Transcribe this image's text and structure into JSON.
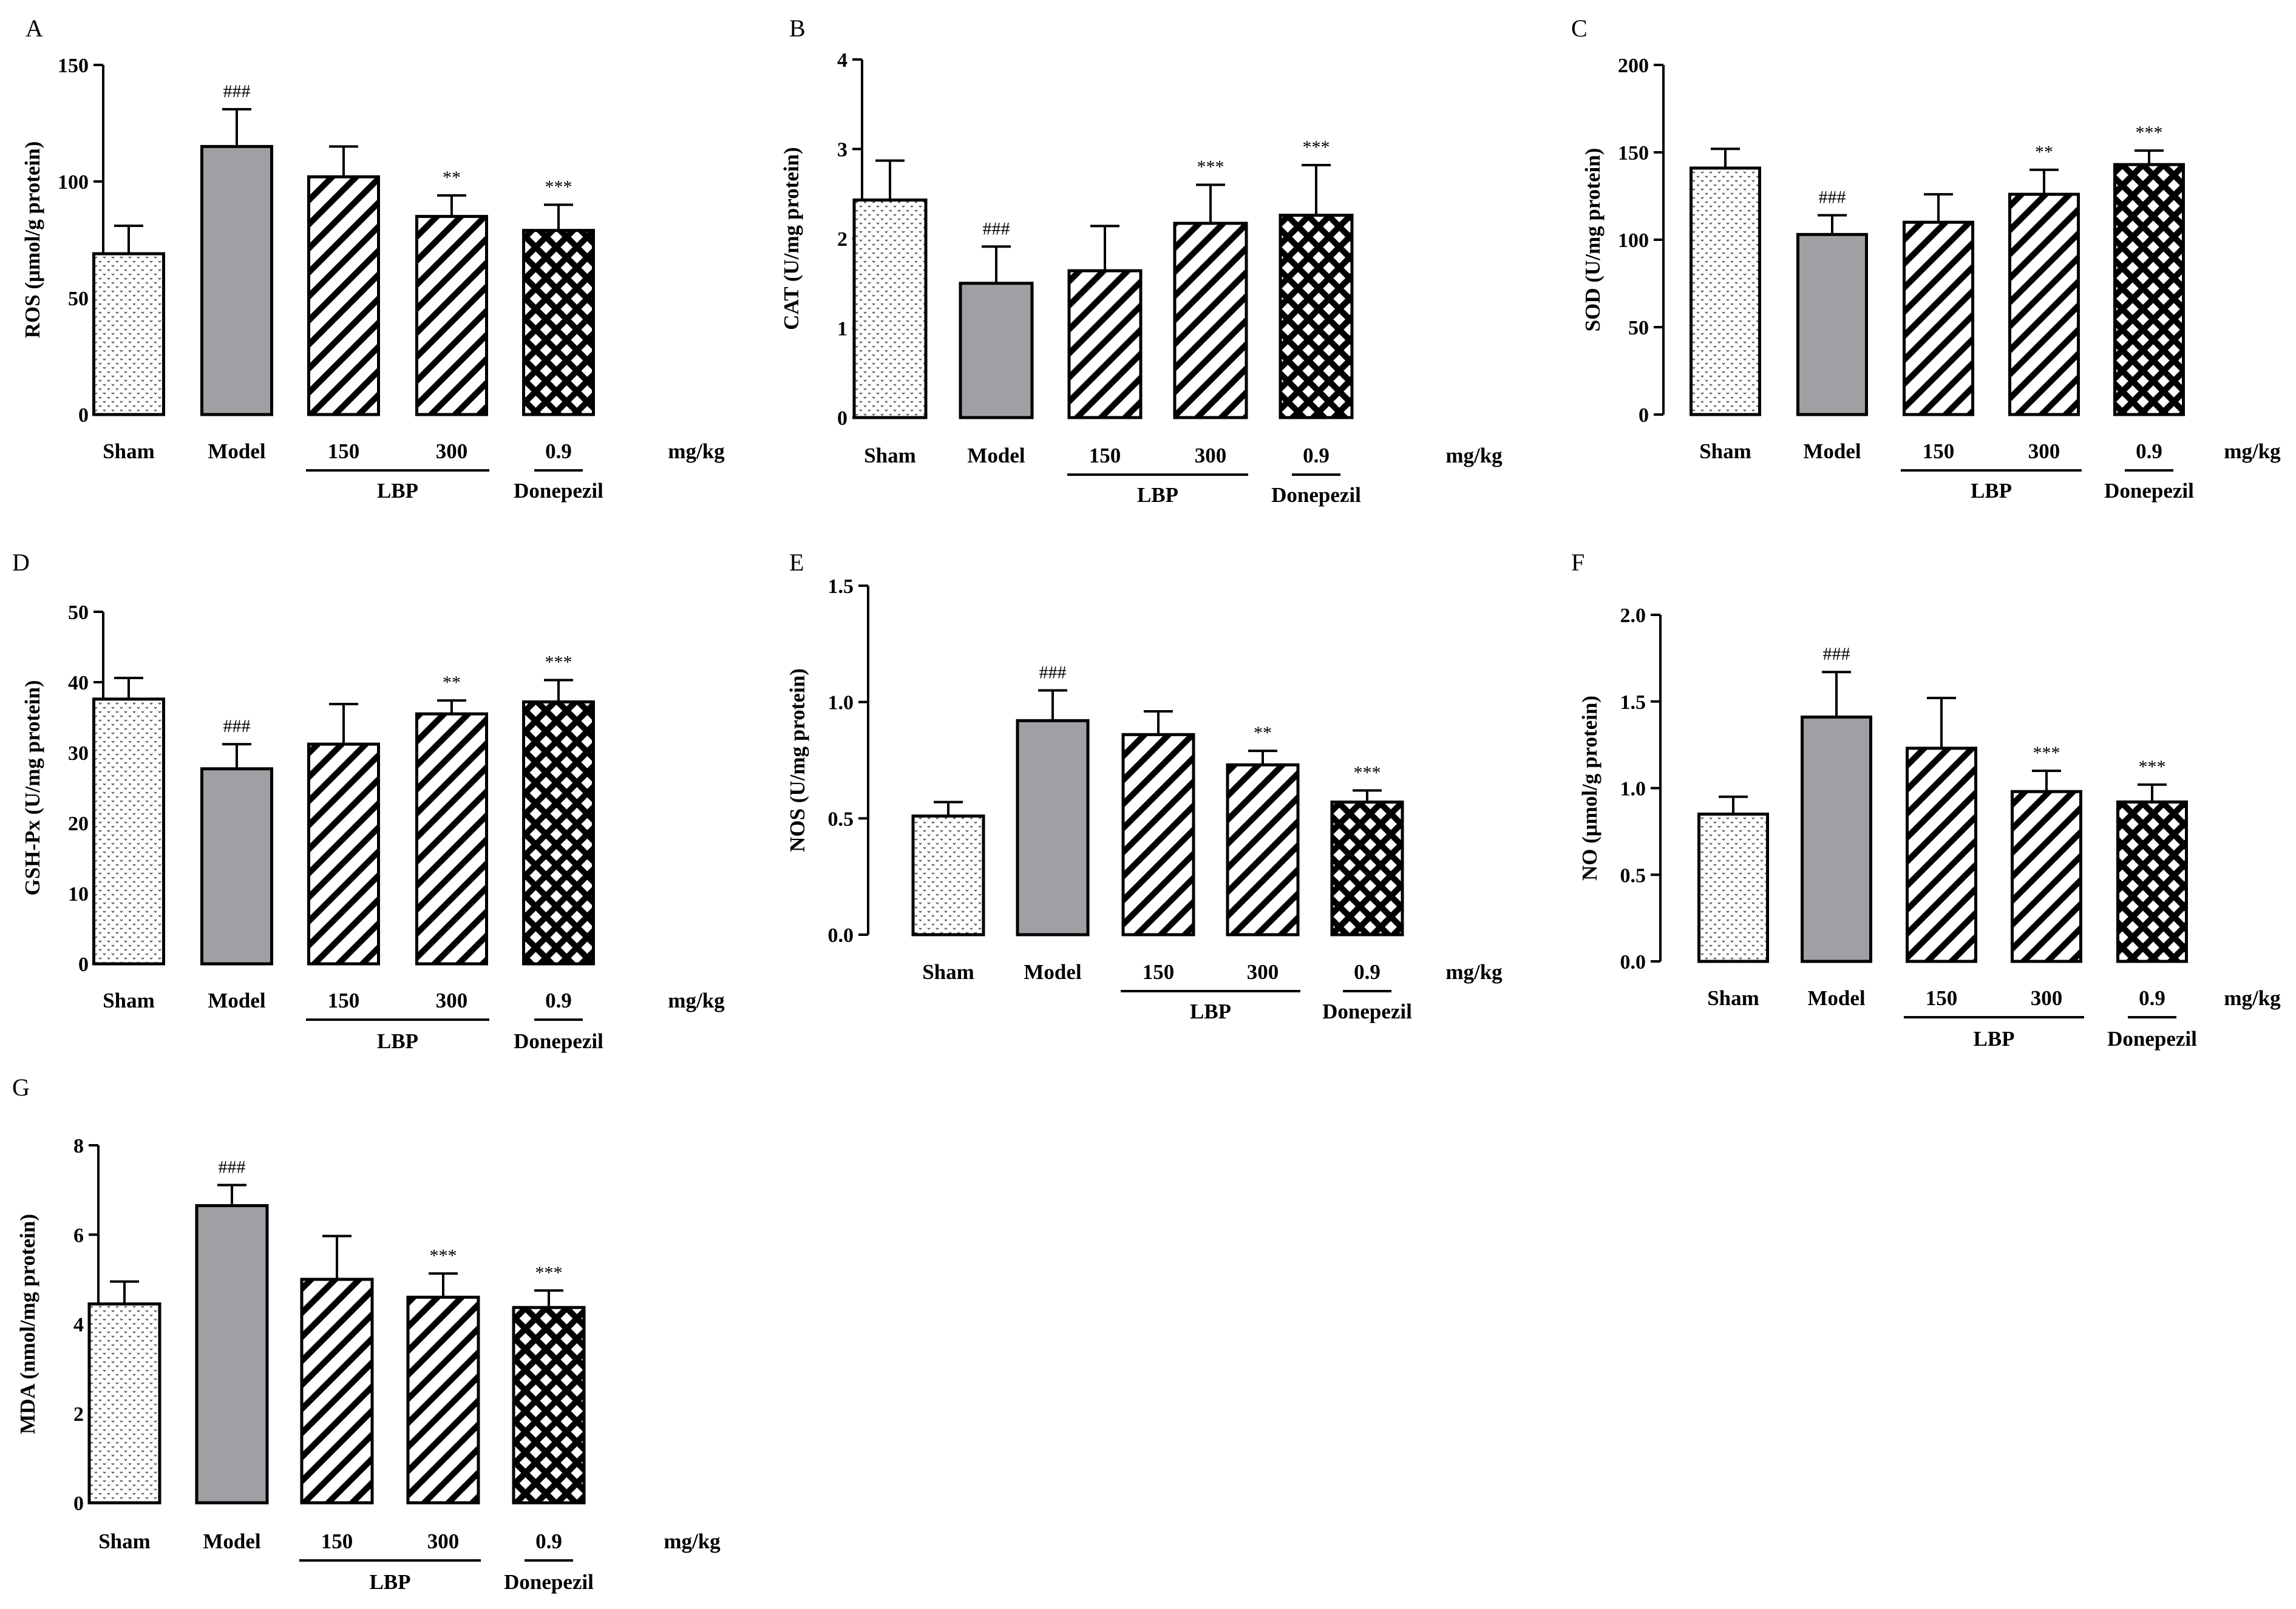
{
  "common": {
    "categories": [
      "Sham",
      "Model",
      "150",
      "300",
      "0.9"
    ],
    "unit_label": "mg/kg",
    "group_labels": [
      "LBP",
      "Donepezil"
    ]
  },
  "colors": {
    "axis": "#000000",
    "model_fill": "#a0a0a4",
    "pattern_line": "#000000",
    "background": "#ffffff"
  },
  "chart_data": [
    {
      "panel": "A",
      "type": "bar",
      "ylabel": "ROS (μmol/g protein)",
      "ylim": [
        0,
        150
      ],
      "ticks": [
        0,
        50,
        100,
        150
      ],
      "tick_labels": [
        "0",
        "50",
        "100",
        "150"
      ],
      "values": [
        69,
        115,
        102,
        85,
        79
      ],
      "errors": [
        12,
        16,
        13,
        9,
        11
      ],
      "significance": [
        "",
        "###",
        "",
        "**",
        "***"
      ]
    },
    {
      "panel": "B",
      "type": "bar",
      "ylabel": "CAT (U/mg protein)",
      "ylim": [
        0,
        4
      ],
      "ticks": [
        0,
        1,
        2,
        3,
        4
      ],
      "tick_labels": [
        "0",
        "1",
        "2",
        "3",
        "4"
      ],
      "values": [
        2.43,
        1.5,
        1.64,
        2.17,
        2.26
      ],
      "errors": [
        0.44,
        0.41,
        0.5,
        0.43,
        0.56
      ],
      "significance": [
        "",
        "###",
        "",
        "***",
        "***"
      ]
    },
    {
      "panel": "C",
      "type": "bar",
      "ylabel": "SOD (U/mg protein)",
      "ylim": [
        0,
        200
      ],
      "ticks": [
        0,
        50,
        100,
        150,
        200
      ],
      "tick_labels": [
        "0",
        "50",
        "100",
        "150",
        "200"
      ],
      "values": [
        141,
        103,
        110,
        126,
        143
      ],
      "errors": [
        11,
        11,
        16,
        14,
        8
      ],
      "significance": [
        "",
        "###",
        "",
        "**",
        "***"
      ]
    },
    {
      "panel": "D",
      "type": "bar",
      "ylabel": "GSH-Px (U/mg protein)",
      "ylim": [
        0,
        50
      ],
      "ticks": [
        0,
        10,
        20,
        30,
        40,
        50
      ],
      "tick_labels": [
        "0",
        "10",
        "20",
        "30",
        "40",
        "50"
      ],
      "values": [
        37.6,
        27.7,
        31.2,
        35.5,
        37.2
      ],
      "errors": [
        3.0,
        3.5,
        5.7,
        1.9,
        3.1
      ],
      "significance": [
        "",
        "###",
        "",
        "**",
        "***"
      ]
    },
    {
      "panel": "E",
      "type": "bar",
      "ylabel": "NOS (U/mg protein)",
      "ylim": [
        0,
        1.5
      ],
      "ticks": [
        0,
        0.5,
        1.0,
        1.5
      ],
      "tick_labels": [
        "0.0",
        "0.5",
        "1.0",
        "1.5"
      ],
      "values": [
        0.51,
        0.92,
        0.86,
        0.73,
        0.57
      ],
      "errors": [
        0.06,
        0.13,
        0.1,
        0.06,
        0.05
      ],
      "significance": [
        "",
        "###",
        "",
        "**",
        "***"
      ]
    },
    {
      "panel": "F",
      "type": "bar",
      "ylabel": "NO (μmol/g protein)",
      "ylim": [
        0,
        2.0
      ],
      "ticks": [
        0,
        0.5,
        1.0,
        1.5,
        2.0
      ],
      "tick_labels": [
        "0.0",
        "0.5",
        "1.0",
        "1.5",
        "2.0"
      ],
      "values": [
        0.85,
        1.41,
        1.23,
        0.98,
        0.92
      ],
      "errors": [
        0.1,
        0.26,
        0.29,
        0.12,
        0.1
      ],
      "significance": [
        "",
        "###",
        "",
        "***",
        "***"
      ]
    },
    {
      "panel": "G",
      "type": "bar",
      "ylabel": "MDA (nmol/mg protein)",
      "ylim": [
        0,
        8
      ],
      "ticks": [
        0,
        2,
        4,
        6,
        8
      ],
      "tick_labels": [
        "0",
        "2",
        "4",
        "6",
        "8"
      ],
      "values": [
        4.45,
        6.65,
        5.0,
        4.6,
        4.37
      ],
      "errors": [
        0.5,
        0.46,
        0.97,
        0.53,
        0.38
      ],
      "significance": [
        "",
        "###",
        "",
        "***",
        "***"
      ]
    }
  ]
}
